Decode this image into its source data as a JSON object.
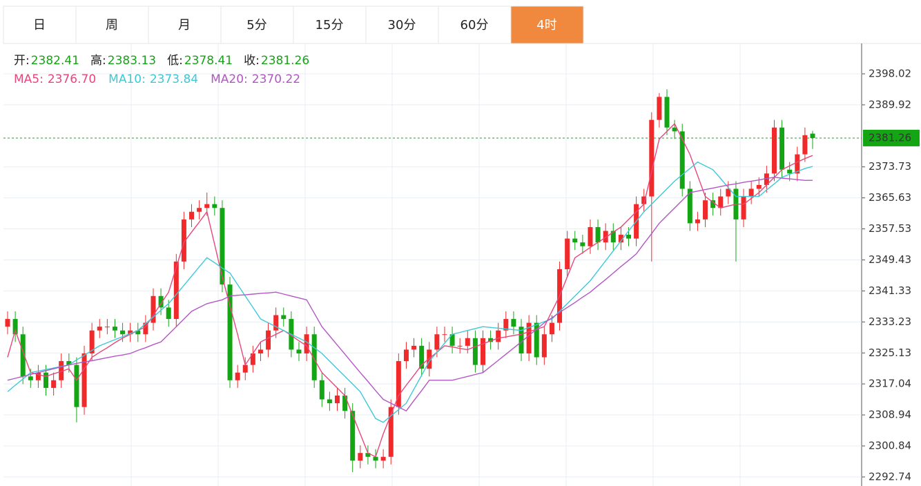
{
  "tabs": [
    "日",
    "周",
    "月",
    "5分",
    "15分",
    "30分",
    "60分",
    "4时"
  ],
  "active_tab": 7,
  "chart_data": {
    "type": "candlestick",
    "ohlc_labels": [
      "开:",
      "高:",
      "低:",
      "收:"
    ],
    "up_color": "#f0292b",
    "down_color": "#14a514",
    "ylim": [
      2291.1,
      2405.95
    ],
    "yticks": [
      2398.02,
      2389.92,
      2373.73,
      2365.63,
      2357.53,
      2349.43,
      2341.33,
      2333.23,
      2325.13,
      2317.04,
      2308.94,
      2300.84,
      2292.74
    ],
    "grid": true,
    "open": [
      2332,
      2334,
      2330,
      2319,
      2318,
      2320,
      2316,
      2318,
      2323,
      2322,
      2311,
      2325,
      2331,
      2332,
      2332,
      2331,
      2330,
      2331,
      2330,
      2333,
      2340,
      2337,
      2334,
      2349,
      2360,
      2362,
      2363,
      2364,
      2363,
      2343,
      2318,
      2320,
      2322,
      2325,
      2326,
      2331,
      2335,
      2334,
      2326,
      2325,
      2330,
      2318,
      2313,
      2312,
      2314,
      2310,
      2297,
      2299,
      2298,
      2297,
      2298,
      2311,
      2323,
      2326,
      2327,
      2321,
      2326,
      2330,
      2330,
      2327,
      2327,
      2329,
      2322,
      2329,
      2328,
      2331,
      2334,
      2332,
      2325,
      2333,
      2324,
      2330,
      2333,
      2347,
      2355,
      2354,
      2353,
      2358,
      2354,
      2357,
      2354,
      2356,
      2355,
      2364,
      2366,
      2386,
      2392,
      2384,
      2383,
      2368,
      2359,
      2360,
      2365,
      2363,
      2366,
      2368,
      2360,
      2366,
      2368,
      2369,
      2372,
      2384,
      2373,
      2372,
      2377,
      2382.41
    ],
    "high": [
      2336,
      2336,
      2332,
      2321,
      2322,
      2322,
      2320,
      2325,
      2325,
      2324,
      2327,
      2333,
      2334,
      2334,
      2334,
      2333,
      2333,
      2333,
      2335,
      2342,
      2342,
      2339,
      2351,
      2362,
      2364,
      2365,
      2367,
      2366,
      2365,
      2345,
      2322,
      2324,
      2327,
      2328,
      2333,
      2337,
      2337,
      2336,
      2328,
      2332,
      2332,
      2320,
      2315,
      2316,
      2316,
      2312,
      2301,
      2301,
      2300,
      2300,
      2313,
      2325,
      2328,
      2329,
      2329,
      2328,
      2332,
      2332,
      2332,
      2329,
      2331,
      2331,
      2331,
      2331,
      2333,
      2336,
      2336,
      2334,
      2335,
      2335,
      2332,
      2335,
      2349,
      2357,
      2357,
      2356,
      2360,
      2360,
      2359,
      2359,
      2358,
      2358,
      2366,
      2368,
      2388,
      2393,
      2394,
      2386,
      2385,
      2370,
      2362,
      2367,
      2367,
      2368,
      2370,
      2370,
      2368,
      2370,
      2371,
      2374,
      2386,
      2386,
      2375,
      2379,
      2384,
      2383.13
    ],
    "low": [
      2330,
      2328,
      2317,
      2316,
      2316,
      2314,
      2314,
      2316,
      2320,
      2307,
      2309,
      2323,
      2329,
      2330,
      2329,
      2328,
      2328,
      2328,
      2328,
      2331,
      2335,
      2332,
      2332,
      2347,
      2358,
      2360,
      2361,
      2361,
      2341,
      2316,
      2316,
      2318,
      2320,
      2323,
      2324,
      2329,
      2332,
      2324,
      2323,
      2323,
      2316,
      2311,
      2310,
      2310,
      2308,
      2294,
      2295,
      2296,
      2295,
      2295,
      2296,
      2309,
      2321,
      2324,
      2319,
      2319,
      2324,
      2328,
      2325,
      2325,
      2325,
      2320,
      2320,
      2326,
      2326,
      2329,
      2330,
      2323,
      2323,
      2322,
      2322,
      2328,
      2331,
      2345,
      2352,
      2351,
      2351,
      2352,
      2352,
      2352,
      2352,
      2353,
      2353,
      2362,
      2349,
      2384,
      2382,
      2381,
      2366,
      2357,
      2357,
      2358,
      2361,
      2361,
      2364,
      2349,
      2358,
      2364,
      2366,
      2367,
      2370,
      2371,
      2370,
      2370,
      2375,
      2378.41
    ],
    "close": [
      2334,
      2330,
      2319,
      2318,
      2320,
      2316,
      2318,
      2323,
      2322,
      2311,
      2325,
      2331,
      2332,
      2332,
      2331,
      2330,
      2331,
      2330,
      2333,
      2340,
      2337,
      2334,
      2349,
      2360,
      2362,
      2363,
      2364,
      2363,
      2343,
      2318,
      2320,
      2322,
      2325,
      2326,
      2331,
      2335,
      2334,
      2326,
      2325,
      2330,
      2318,
      2313,
      2312,
      2314,
      2310,
      2297,
      2299,
      2298,
      2297,
      2298,
      2311,
      2323,
      2326,
      2327,
      2321,
      2326,
      2330,
      2330,
      2327,
      2327,
      2329,
      2322,
      2329,
      2328,
      2331,
      2334,
      2332,
      2325,
      2333,
      2324,
      2330,
      2333,
      2347,
      2355,
      2354,
      2353,
      2358,
      2354,
      2357,
      2354,
      2356,
      2355,
      2364,
      2366,
      2386,
      2392,
      2384,
      2383,
      2368,
      2359,
      2360,
      2365,
      2363,
      2366,
      2368,
      2360,
      2366,
      2368,
      2369,
      2372,
      2384,
      2373,
      2372,
      2377,
      2382,
      2381.26
    ],
    "series": [
      {
        "name": "MA5:",
        "color": "#e9467a",
        "value_label": "2376.70",
        "values": [
          2324,
          2331,
          2325.5,
          2320,
          2319.5,
          2319,
          2319.7,
          2320.3,
          2321,
          2318,
          2321,
          2324,
          2325.3,
          2326.5,
          2327.8,
          2329,
          2330,
          2331,
          2332,
          2335,
          2338,
          2341,
          2347.5,
          2354,
          2356.7,
          2359.3,
          2362,
          2353.5,
          2345,
          2337.5,
          2330,
          2322,
          2325,
          2328,
          2329,
          2330,
          2331,
          2329.7,
          2328.3,
          2327,
          2323.5,
          2320,
          2318,
          2316,
          2314,
          2309,
          2304,
          2299,
          2298,
          2304,
          2309,
          2314,
          2316.7,
          2319.3,
          2322,
          2323.7,
          2325.3,
          2327,
          2326.7,
          2326.3,
          2326,
          2326.8,
          2327.5,
          2328.3,
          2329,
          2329.3,
          2329.7,
          2330,
          2330.7,
          2331.3,
          2332,
          2336,
          2340,
          2345,
          2350,
          2351.3,
          2352.7,
          2354,
          2355.3,
          2356.7,
          2358,
          2360,
          2362,
          2364,
          2372.5,
          2381,
          2383,
          2385,
          2381,
          2377,
          2371.5,
          2366,
          2364.5,
          2363,
          2363.5,
          2364,
          2364,
          2365.5,
          2367,
          2369,
          2371,
          2373,
          2374,
          2375,
          2375.9,
          2376.7
        ]
      },
      {
        "name": "MA10:",
        "color": "#3ec8d8",
        "value_label": "2373.84",
        "values": [
          2315,
          2316.7,
          2318.3,
          2320,
          2320.4,
          2320.8,
          2321.2,
          2321.6,
          2322,
          2323.3,
          2324.5,
          2325.8,
          2327,
          2327.8,
          2328.6,
          2329.4,
          2330.2,
          2331,
          2332.8,
          2334.5,
          2336.3,
          2338,
          2340.4,
          2342.8,
          2345.2,
          2347.6,
          2350,
          2348.7,
          2347.3,
          2346,
          2343,
          2340,
          2337,
          2334,
          2333,
          2332,
          2331,
          2330,
          2329,
          2328,
          2326.5,
          2325,
          2323,
          2321,
          2319,
          2317,
          2315,
          2311.5,
          2308,
          2307,
          2308.7,
          2310.3,
          2312,
          2315.7,
          2319.3,
          2323,
          2325.3,
          2327.7,
          2330,
          2330.5,
          2331,
          2331.5,
          2332,
          2331.8,
          2331.6,
          2331.4,
          2331.2,
          2331,
          2331.8,
          2332.5,
          2333.3,
          2334,
          2336,
          2338,
          2340,
          2342,
          2344,
          2346.6,
          2349.2,
          2351.8,
          2354.4,
          2357,
          2359.5,
          2362,
          2364,
          2366,
          2368,
          2370,
          2371.7,
          2373.3,
          2375,
          2374,
          2373,
          2370.7,
          2368.3,
          2366,
          2366,
          2366,
          2366,
          2367.7,
          2369.3,
          2371,
          2371.8,
          2372.5,
          2373.3,
          2373.84
        ]
      },
      {
        "name": "MA20:",
        "color": "#b256c4",
        "value_label": "2370.22",
        "values": [
          2318,
          2318.5,
          2319,
          2319.5,
          2320,
          2320.5,
          2321,
          2321.5,
          2322,
          2322.4,
          2322.8,
          2323.1,
          2323.5,
          2323.9,
          2324.3,
          2324.6,
          2325,
          2325.8,
          2326.5,
          2327.3,
          2328,
          2330,
          2332,
          2334,
          2336,
          2337,
          2338,
          2338.5,
          2339,
          2340,
          2340.2,
          2340.3,
          2340.5,
          2340.7,
          2340.8,
          2341,
          2340.5,
          2340,
          2339.5,
          2339,
          2335.5,
          2332,
          2329.6,
          2327.2,
          2324.8,
          2322.4,
          2320,
          2317.7,
          2315.3,
          2313,
          2312,
          2311,
          2310,
          2312.7,
          2315.3,
          2318,
          2318,
          2318,
          2318,
          2318.5,
          2319,
          2319.5,
          2320,
          2321.6,
          2323.2,
          2324.8,
          2326.4,
          2328,
          2329.7,
          2331.3,
          2333,
          2334.3,
          2335.7,
          2337,
          2338.3,
          2339.7,
          2341,
          2342.7,
          2344.3,
          2346,
          2347.7,
          2349.3,
          2351,
          2353.7,
          2356.3,
          2359,
          2361,
          2363,
          2365,
          2367,
          2367.4,
          2367.8,
          2368.2,
          2368.6,
          2369,
          2369.3,
          2369.7,
          2370,
          2370.3,
          2370.7,
          2371,
          2370.8,
          2370.6,
          2370.4,
          2370.2,
          2370.22
        ]
      }
    ]
  }
}
